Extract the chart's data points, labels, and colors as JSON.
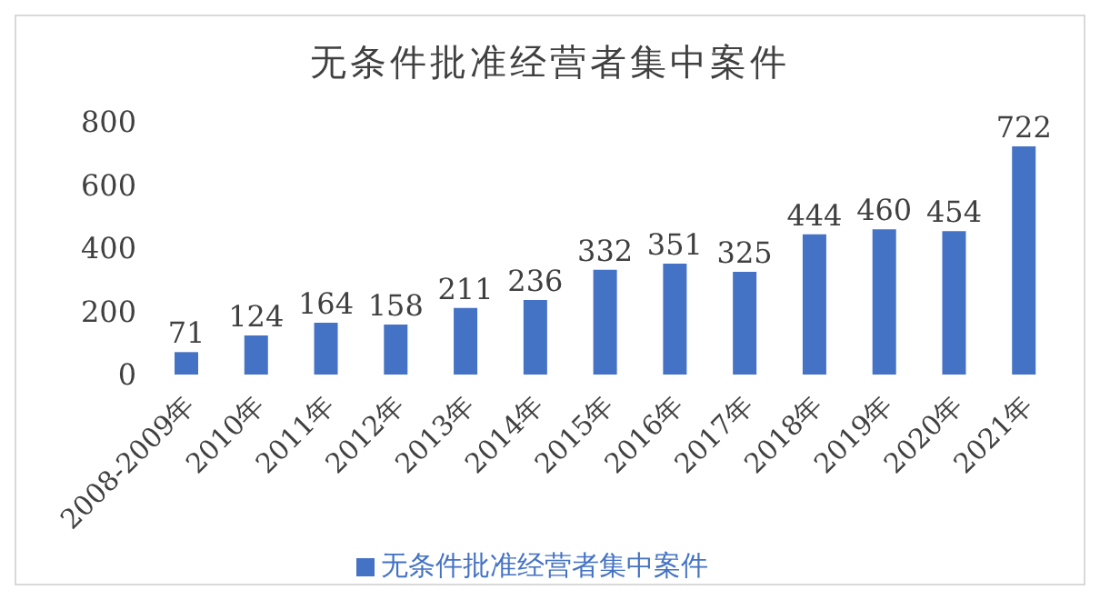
{
  "chart_data": {
    "type": "bar",
    "title": "无条件批准经营者集中案件",
    "categories": [
      "2008-2009年",
      "2010年",
      "2011年",
      "2012年",
      "2013年",
      "2014年",
      "2015年",
      "2016年",
      "2017年",
      "2018年",
      "2019年",
      "2020年",
      "2021年"
    ],
    "series": [
      {
        "name": "无条件批准经营者集中案件",
        "color": "#4472c4",
        "values": [
          71,
          124,
          164,
          158,
          211,
          236,
          332,
          351,
          325,
          444,
          460,
          454,
          722
        ]
      }
    ],
    "ylim": [
      0,
      800
    ],
    "yticks": [
      0,
      200,
      400,
      600,
      800
    ],
    "grid": false,
    "legend": "bottom",
    "data_labels": true
  }
}
